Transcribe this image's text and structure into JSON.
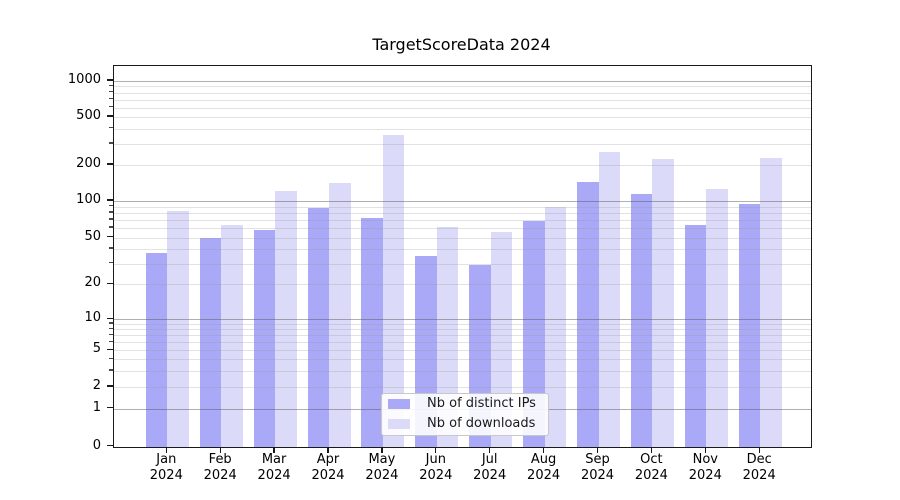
{
  "title": "TargetScoreData 2024",
  "colors": {
    "ips": "#a9a9f7",
    "downloads": "#dbdbf9",
    "major_grid": "#b4b4b4",
    "minor_grid": "#e4e4e4",
    "spine": "#1a1a1a"
  },
  "legend": {
    "items": [
      {
        "label": "Nb of distinct IPs",
        "series": "ips"
      },
      {
        "label": "Nb of downloads",
        "series": "downloads"
      }
    ]
  },
  "x_axis": {
    "months": [
      "Jan",
      "Feb",
      "Mar",
      "Apr",
      "May",
      "Jun",
      "Jul",
      "Aug",
      "Sep",
      "Oct",
      "Nov",
      "Dec"
    ],
    "year": "2024"
  },
  "y_axis": {
    "tick_labels": [
      "0",
      "1",
      "2",
      "5",
      "10",
      "20",
      "50",
      "100",
      "200",
      "500",
      "1000"
    ]
  },
  "chart_data": {
    "type": "bar",
    "title": "TargetScoreData 2024",
    "categories": [
      "Jan 2024",
      "Feb 2024",
      "Mar 2024",
      "Apr 2024",
      "May 2024",
      "Jun 2024",
      "Jul 2024",
      "Aug 2024",
      "Sep 2024",
      "Oct 2024",
      "Nov 2024",
      "Dec 2024"
    ],
    "series": [
      {
        "name": "Nb of distinct IPs",
        "color": "#a9a9f7",
        "values": [
          37,
          50,
          58,
          88,
          73,
          35,
          29,
          68,
          145,
          114,
          63,
          94
        ]
      },
      {
        "name": "Nb of downloads",
        "color": "#dbdbf9",
        "values": [
          83,
          63,
          121,
          142,
          355,
          61,
          56,
          90,
          258,
          224,
          125,
          227
        ]
      }
    ],
    "xlabel": "",
    "ylabel": "",
    "yscale": "symlog",
    "y_ticks": [
      0,
      1,
      2,
      5,
      10,
      20,
      50,
      100,
      200,
      500,
      1000
    ],
    "ylim": [
      0,
      1100
    ],
    "grid": "horizontal major+minor, drawn over bars",
    "legend_position": "inside lower-center"
  }
}
